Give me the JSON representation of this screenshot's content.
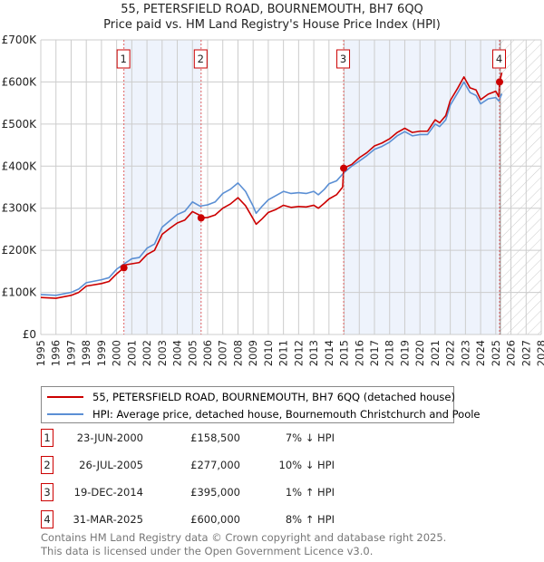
{
  "title": "55, PETERSFIELD ROAD, BOURNEMOUTH, BH7 6QQ",
  "subtitle": "Price paid vs. HM Land Registry's House Price Index (HPI)",
  "colors": {
    "price": "#cc0000",
    "hpi": "#5b8fd4",
    "band": "#eef3fc"
  },
  "chart_data": {
    "type": "line",
    "xlim": [
      1995,
      2028
    ],
    "ylim": [
      0,
      700000
    ],
    "yticks": [
      0,
      100000,
      200000,
      300000,
      400000,
      500000,
      600000,
      700000
    ],
    "ytick_labels": [
      "£0",
      "£100K",
      "£200K",
      "£300K",
      "£400K",
      "£500K",
      "£600K",
      "£700K"
    ],
    "xticks": [
      "1995",
      "1996",
      "1997",
      "1998",
      "1999",
      "2000",
      "2001",
      "2002",
      "2003",
      "2004",
      "2005",
      "2006",
      "2007",
      "2008",
      "2009",
      "2010",
      "2011",
      "2012",
      "2013",
      "2014",
      "2015",
      "2016",
      "2017",
      "2018",
      "2019",
      "2020",
      "2021",
      "2022",
      "2023",
      "2024",
      "2025",
      "2026",
      "2027",
      "2028"
    ],
    "grid": true,
    "forecast_from": 2025.3,
    "series": [
      {
        "name": "55, PETERSFIELD ROAD, BOURNEMOUTH, BH7 6QQ (detached house)",
        "color": "#cc0000",
        "x": [
          1995,
          1996,
          1997,
          1997.5,
          1998,
          1999,
          1999.5,
          2000,
          2000.48,
          2000.5,
          2001,
          2001.5,
          2002,
          2002.5,
          2003,
          2003.5,
          2004,
          2004.5,
          2005,
          2005.5,
          2005.57,
          2006,
          2006.5,
          2007,
          2007.5,
          2008,
          2008.5,
          2009,
          2009.2,
          2009.6,
          2010,
          2010.5,
          2011,
          2011.5,
          2012,
          2012.5,
          2013,
          2013.3,
          2013.7,
          2014,
          2014.5,
          2014.9,
          2014.97,
          2015.5,
          2016,
          2016.5,
          2017,
          2017.5,
          2018,
          2018.5,
          2019,
          2019.5,
          2020,
          2020.5,
          2021,
          2021.3,
          2021.7,
          2022,
          2022.5,
          2022.9,
          2023.3,
          2023.7,
          2024,
          2024.5,
          2025,
          2025.2,
          2025.25,
          2025.4
        ],
        "y": [
          88000,
          86000,
          93000,
          100000,
          115000,
          121000,
          126000,
          144000,
          158500,
          165000,
          168000,
          171000,
          190000,
          200000,
          238000,
          252000,
          265000,
          272000,
          292000,
          283000,
          277000,
          278000,
          284000,
          300000,
          310000,
          325000,
          306000,
          275000,
          262000,
          275000,
          290000,
          297000,
          307000,
          302000,
          304000,
          303000,
          307000,
          300000,
          312000,
          322000,
          332000,
          350000,
          395000,
          404000,
          420000,
          432000,
          448000,
          455000,
          465000,
          480000,
          490000,
          480000,
          483000,
          483000,
          510000,
          503000,
          520000,
          556000,
          586000,
          612000,
          586000,
          581000,
          558000,
          571000,
          578000,
          565000,
          600000,
          622000
        ]
      },
      {
        "name": "HPI: Average price, detached house, Bournemouth Christchurch and Poole",
        "color": "#5b8fd4",
        "x": [
          1995,
          1996,
          1997,
          1997.5,
          1998,
          1999,
          1999.5,
          2000,
          2000.5,
          2001,
          2001.5,
          2002,
          2002.5,
          2003,
          2003.5,
          2004,
          2004.5,
          2005,
          2005.5,
          2006,
          2006.5,
          2007,
          2007.5,
          2008,
          2008.5,
          2009,
          2009.2,
          2009.6,
          2010,
          2010.5,
          2011,
          2011.5,
          2012,
          2012.5,
          2013,
          2013.3,
          2013.7,
          2014,
          2014.5,
          2015,
          2015.5,
          2016,
          2016.5,
          2017,
          2017.5,
          2018,
          2018.5,
          2019,
          2019.5,
          2020,
          2020.5,
          2021,
          2021.3,
          2021.7,
          2022,
          2022.5,
          2022.9,
          2023.3,
          2023.7,
          2024,
          2024.5,
          2025,
          2025.2,
          2025.4
        ],
        "y": [
          95000,
          93000,
          100000,
          108000,
          123000,
          130000,
          135000,
          155000,
          168000,
          180000,
          183000,
          205000,
          215000,
          255000,
          270000,
          285000,
          293000,
          315000,
          305000,
          308000,
          315000,
          335000,
          345000,
          360000,
          340000,
          305000,
          288000,
          305000,
          320000,
          330000,
          340000,
          335000,
          337000,
          335000,
          340000,
          332000,
          345000,
          358000,
          365000,
          385000,
          400000,
          412000,
          425000,
          440000,
          447000,
          457000,
          472000,
          482000,
          472000,
          475000,
          475000,
          500000,
          494000,
          510000,
          545000,
          575000,
          600000,
          575000,
          568000,
          548000,
          560000,
          563000,
          555000,
          572000
        ]
      }
    ],
    "sales": [
      {
        "label": "1",
        "x": 2000.48,
        "price": 158500
      },
      {
        "label": "2",
        "x": 2005.57,
        "price": 277000
      },
      {
        "label": "3",
        "x": 2014.97,
        "price": 395000
      },
      {
        "label": "4",
        "x": 2025.25,
        "price": 600000
      }
    ]
  },
  "legend": {
    "price": "55, PETERSFIELD ROAD, BOURNEMOUTH, BH7 6QQ (detached house)",
    "hpi": "HPI: Average price, detached house, Bournemouth Christchurch and Poole"
  },
  "table": [
    {
      "num": "1",
      "date": "23-JUN-2000",
      "price": "£158,500",
      "hpi": "7% ↓ HPI"
    },
    {
      "num": "2",
      "date": "26-JUL-2005",
      "price": "£277,000",
      "hpi": "10% ↓ HPI"
    },
    {
      "num": "3",
      "date": "19-DEC-2014",
      "price": "£395,000",
      "hpi": "1% ↑ HPI"
    },
    {
      "num": "4",
      "date": "31-MAR-2025",
      "price": "£600,000",
      "hpi": "8% ↑ HPI"
    }
  ],
  "footer": {
    "line1": "Contains HM Land Registry data © Crown copyright and database right 2025.",
    "line2": "This data is licensed under the Open Government Licence v3.0."
  }
}
